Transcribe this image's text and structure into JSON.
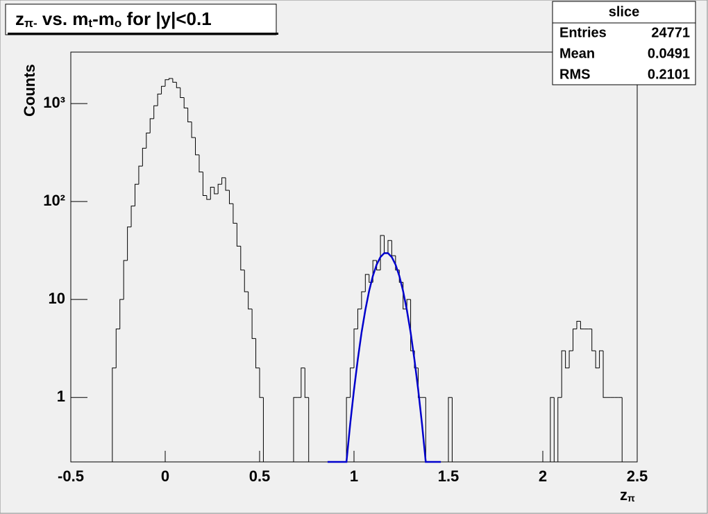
{
  "chart_data": {
    "type": "histogram",
    "title": [
      "z",
      "π-",
      " vs. m",
      "t",
      "-m",
      "o",
      " for |y|<0.1"
    ],
    "x_label": [
      "z",
      "π"
    ],
    "y_label": "Counts",
    "log_y": true,
    "color": "#000000",
    "bins": [
      -0.5,
      -0.48,
      -0.46,
      -0.44,
      -0.42,
      -0.4,
      -0.38,
      -0.36,
      -0.34,
      -0.32,
      -0.3,
      -0.28,
      -0.26,
      -0.24,
      -0.22,
      -0.2,
      -0.18,
      -0.16,
      -0.14,
      -0.12,
      -0.1,
      -0.08,
      -0.06,
      -0.04,
      -0.02,
      0,
      0.02,
      0.04,
      0.06,
      0.08,
      0.1,
      0.12,
      0.14,
      0.16,
      0.18,
      0.2,
      0.22,
      0.24,
      0.26,
      0.28,
      0.3,
      0.32,
      0.34,
      0.36,
      0.38,
      0.4,
      0.42,
      0.44,
      0.46,
      0.48,
      0.5,
      0.52,
      0.54,
      0.56,
      0.58,
      0.6,
      0.62,
      0.64,
      0.66,
      0.68,
      0.7,
      0.72,
      0.74,
      0.76,
      0.78,
      0.8,
      0.82,
      0.84,
      0.86,
      0.88,
      0.9,
      0.92,
      0.94,
      0.96,
      0.98,
      1,
      1.02,
      1.04,
      1.06,
      1.08,
      1.1,
      1.12,
      1.14,
      1.16,
      1.18,
      1.2,
      1.22,
      1.24,
      1.26,
      1.28,
      1.3,
      1.32,
      1.34,
      1.36,
      1.38,
      1.4,
      1.42,
      1.44,
      1.46,
      1.48,
      1.5,
      1.52,
      1.54,
      1.56,
      1.58,
      1.6,
      1.62,
      1.64,
      1.66,
      1.68,
      1.7,
      1.72,
      1.74,
      1.76,
      1.78,
      1.8,
      1.82,
      1.84,
      1.86,
      1.88,
      1.9,
      1.92,
      1.94,
      1.96,
      1.98,
      2,
      2.02,
      2.04,
      2.06,
      2.08,
      2.1,
      2.12,
      2.14,
      2.16,
      2.18,
      2.2,
      2.22,
      2.24,
      2.26,
      2.28,
      2.3,
      2.32,
      2.34,
      2.36,
      2.38,
      2.4,
      2.42,
      2.44,
      2.46,
      2.48,
      2.5
    ],
    "values": [
      0,
      0,
      0,
      0,
      0,
      0,
      0,
      0,
      0,
      0,
      0,
      2,
      5,
      10,
      25,
      55,
      90,
      150,
      230,
      350,
      500,
      700,
      950,
      1250,
      1500,
      1750,
      1800,
      1650,
      1450,
      1150,
      900,
      650,
      450,
      300,
      200,
      115,
      105,
      140,
      120,
      150,
      175,
      130,
      95,
      60,
      35,
      20,
      12,
      8,
      4,
      2,
      1,
      0,
      0,
      0,
      0,
      0,
      0,
      0,
      0,
      1,
      1,
      2,
      1,
      0,
      0,
      0,
      0,
      0,
      0,
      0,
      0,
      0,
      0,
      1,
      2,
      5,
      8,
      12,
      18,
      15,
      25,
      20,
      45,
      30,
      40,
      28,
      20,
      15,
      8,
      10,
      3,
      2,
      1,
      1,
      0,
      0,
      0,
      0,
      0,
      0,
      1,
      0,
      0,
      0,
      0,
      0,
      0,
      0,
      0,
      0,
      0,
      0,
      0,
      0,
      0,
      0,
      0,
      0,
      0,
      0,
      0,
      0,
      0,
      0,
      0,
      0,
      0,
      1,
      0,
      1,
      3,
      2,
      3,
      5,
      6,
      5,
      5,
      5,
      3,
      2,
      3,
      1,
      1,
      1,
      1,
      1,
      0,
      0,
      0,
      0
    ],
    "fit": {
      "color": "#0000cc",
      "x": [
        0.86,
        0.96,
        0.98,
        1,
        1.02,
        1.04,
        1.06,
        1.08,
        1.1,
        1.12,
        1.14,
        1.16,
        1.18,
        1.2,
        1.22,
        1.24,
        1.26,
        1.28,
        1.3,
        1.32,
        1.34,
        1.36,
        1.38,
        1.46
      ],
      "values": [
        0,
        0.22,
        0.54,
        1.2,
        2.44,
        4.6,
        7.8,
        12.2,
        17.4,
        22.7,
        27.1,
        29.7,
        29.7,
        27.1,
        22.7,
        17.4,
        12.2,
        7.8,
        4.6,
        2.44,
        1.2,
        0.54,
        0.22,
        0
      ]
    },
    "xlim": [
      -0.5,
      2.5
    ],
    "xticks": [
      -0.5,
      0,
      0.5,
      1,
      1.5,
      2,
      2.5
    ],
    "ylim": [
      0.22,
      3350
    ],
    "yticks": [
      1,
      10,
      {
        "value": 100,
        "label": "10²"
      },
      {
        "value": 1000,
        "label": "10³"
      }
    ],
    "stats": {
      "title": "slice",
      "rows": [
        [
          "Entries",
          24771
        ],
        [
          "Mean",
          0.0491
        ],
        [
          "RMS",
          0.2101
        ]
      ]
    }
  }
}
